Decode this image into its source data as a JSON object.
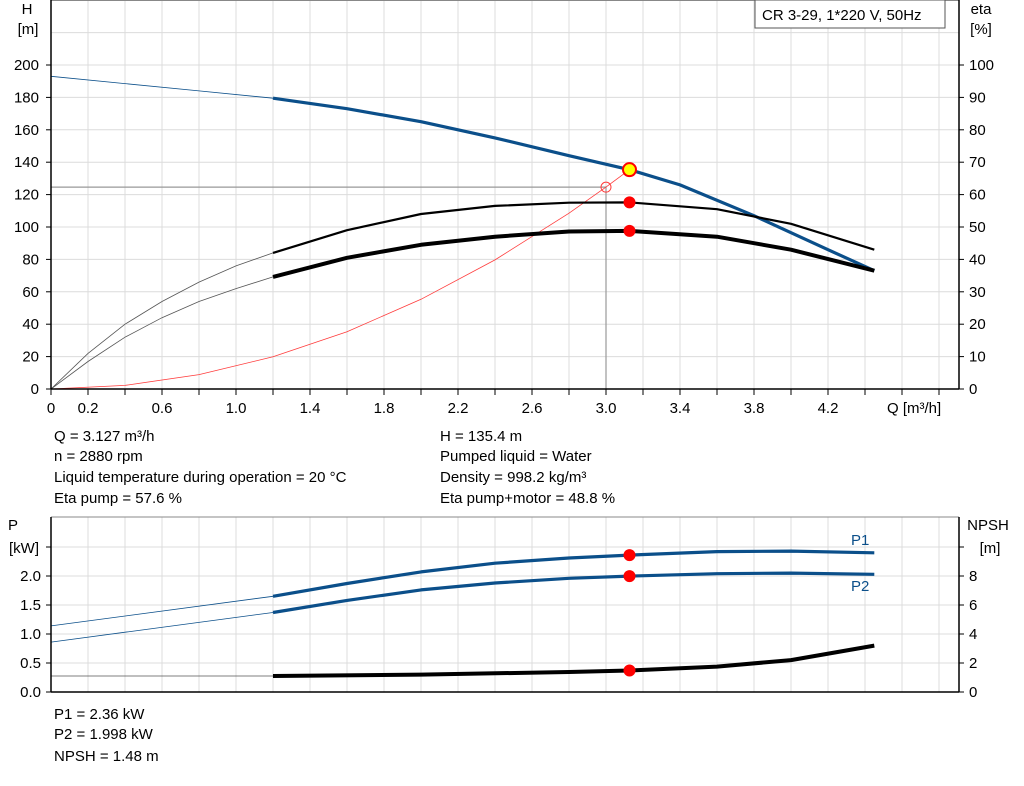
{
  "title_box": "CR 3-29, 1*220 V, 50Hz",
  "colors": {
    "head": "#0b4f8a",
    "system": "#ff3b3b",
    "eta": "#000000",
    "power": "#0b4f8a",
    "npsh": "#000000",
    "marker": "#ff0000",
    "duty_point": "#ffff00"
  },
  "chart_data": [
    {
      "type": "line",
      "xlabel": "Q [m³/h]",
      "ylabel": "H\n[m]",
      "ylabel_right": "eta\n[%]",
      "xlim": [
        0,
        4.9
      ],
      "ylim": [
        0,
        240
      ],
      "ylim_right": [
        0,
        120
      ],
      "x_tick_labels": [
        "0",
        "0.2",
        "0.6",
        "1.0",
        "1.4",
        "1.8",
        "2.2",
        "2.6",
        "3.0",
        "3.4",
        "3.8",
        "4.2"
      ],
      "x_ticks": [
        0,
        0.2,
        0.6,
        1.0,
        1.4,
        1.8,
        2.2,
        2.6,
        3.0,
        3.4,
        3.8,
        4.2
      ],
      "y_ticks": [
        0,
        20,
        40,
        60,
        80,
        100,
        120,
        140,
        160,
        180,
        200
      ],
      "y_ticks_right": [
        0,
        10,
        20,
        30,
        40,
        50,
        60,
        70,
        80,
        90,
        100
      ],
      "grid": true,
      "series": [
        {
          "axis": "left",
          "x": [
            0,
            0.4,
            0.8,
            1.2,
            1.6,
            2.0,
            2.4,
            2.8,
            3.127,
            3.4,
            3.8,
            4.2,
            4.45
          ],
          "y": [
            193,
            188.5,
            184,
            179.5,
            173,
            165,
            155,
            144,
            135.4,
            126,
            107,
            86,
            73
          ],
          "thick_from": 1.2,
          "color": "#0b4f8a"
        },
        {
          "axis": "left",
          "x": [
            0,
            0.4,
            0.8,
            1.2,
            1.6,
            2.0,
            2.4,
            2.8,
            3.0,
            3.127
          ],
          "y": [
            0,
            2.2,
            8.9,
            19.9,
            35.4,
            55.4,
            79.7,
            108.5,
            124.6,
            135.4
          ],
          "color": "#ff3b3b"
        },
        {
          "axis": "right",
          "x": [
            0,
            0.2,
            0.4,
            0.6,
            0.8,
            1.0,
            1.2,
            1.6,
            2.0,
            2.4,
            2.8,
            3.127,
            3.6,
            4.0,
            4.45
          ],
          "y": [
            0,
            11,
            20,
            27,
            33,
            38,
            42,
            49,
            54,
            56.5,
            57.5,
            57.6,
            55.5,
            51,
            43
          ],
          "thick_from": 1.2,
          "color": "#000000"
        },
        {
          "axis": "right",
          "x": [
            0,
            0.2,
            0.4,
            0.6,
            0.8,
            1.0,
            1.2,
            1.6,
            2.0,
            2.4,
            2.8,
            3.127,
            3.6,
            4.0,
            4.45
          ],
          "y": [
            0,
            8.5,
            16,
            22,
            27,
            31,
            34.6,
            40.5,
            44.5,
            47,
            48.6,
            48.8,
            47,
            43,
            36.5
          ],
          "thick_from": 1.2,
          "color": "#000000",
          "bold": true
        }
      ],
      "reference_point": {
        "x": 3.0,
        "y": 124.6
      },
      "duty_point": {
        "x": 3.127,
        "y": 135.4,
        "eta_pump": 57.6,
        "eta_total": 48.8
      }
    },
    {
      "type": "line",
      "ylabel": "P\n[kW]",
      "ylabel_right": "NPSH\n[m]",
      "xlim": [
        0,
        4.9
      ],
      "ylim": [
        0,
        3.0
      ],
      "ylim_right": [
        0,
        12
      ],
      "y_ticks": [
        0,
        0.5,
        1.0,
        1.5,
        2.0,
        2.5
      ],
      "y_tick_labels": [
        "0.0",
        "0.5",
        "1.0",
        "1.5",
        "2.0",
        ""
      ],
      "y_ticks_right": [
        0,
        2,
        4,
        6,
        8,
        10
      ],
      "y_tick_labels_right": [
        "0",
        "2",
        "4",
        "6",
        "8",
        ""
      ],
      "grid": true,
      "series": [
        {
          "name": "P1",
          "axis": "left",
          "x": [
            0,
            1.2,
            1.6,
            2.0,
            2.4,
            2.8,
            3.127,
            3.6,
            4.0,
            4.45
          ],
          "y": [
            1.14,
            1.65,
            1.87,
            2.07,
            2.22,
            2.31,
            2.36,
            2.42,
            2.43,
            2.4
          ],
          "thick_from": 1.2,
          "color": "#0b4f8a"
        },
        {
          "name": "P2",
          "axis": "left",
          "x": [
            0,
            1.2,
            1.6,
            2.0,
            2.4,
            2.8,
            3.127,
            3.6,
            4.0,
            4.45
          ],
          "y": [
            0.86,
            1.37,
            1.58,
            1.76,
            1.88,
            1.96,
            1.998,
            2.04,
            2.05,
            2.03
          ],
          "thick_from": 1.2,
          "color": "#0b4f8a"
        },
        {
          "axis": "right",
          "x": [
            0,
            1.2,
            2.0,
            2.8,
            3.127,
            3.6,
            4.0,
            4.45
          ],
          "y": [
            1.1,
            1.1,
            1.2,
            1.38,
            1.48,
            1.75,
            2.2,
            3.2
          ],
          "thick_from": 1.2,
          "color": "#000000",
          "bold": true
        }
      ],
      "duty_point": {
        "x": 3.127,
        "p1": 2.36,
        "p2": 1.998,
        "npsh": 1.48
      }
    }
  ],
  "info_top_left": [
    "Q = 3.127 m³/h",
    "n = 2880 rpm",
    "Liquid temperature during operation = 20 °C",
    "Eta pump = 57.6 %"
  ],
  "info_top_right": [
    "H = 135.4 m",
    "Pumped liquid = Water",
    "Density = 998.2 kg/m³",
    "Eta pump+motor = 48.8 %"
  ],
  "info_bottom": [
    "P1 = 2.36 kW",
    "P2 = 1.998 kW",
    "NPSH = 1.48 m"
  ]
}
